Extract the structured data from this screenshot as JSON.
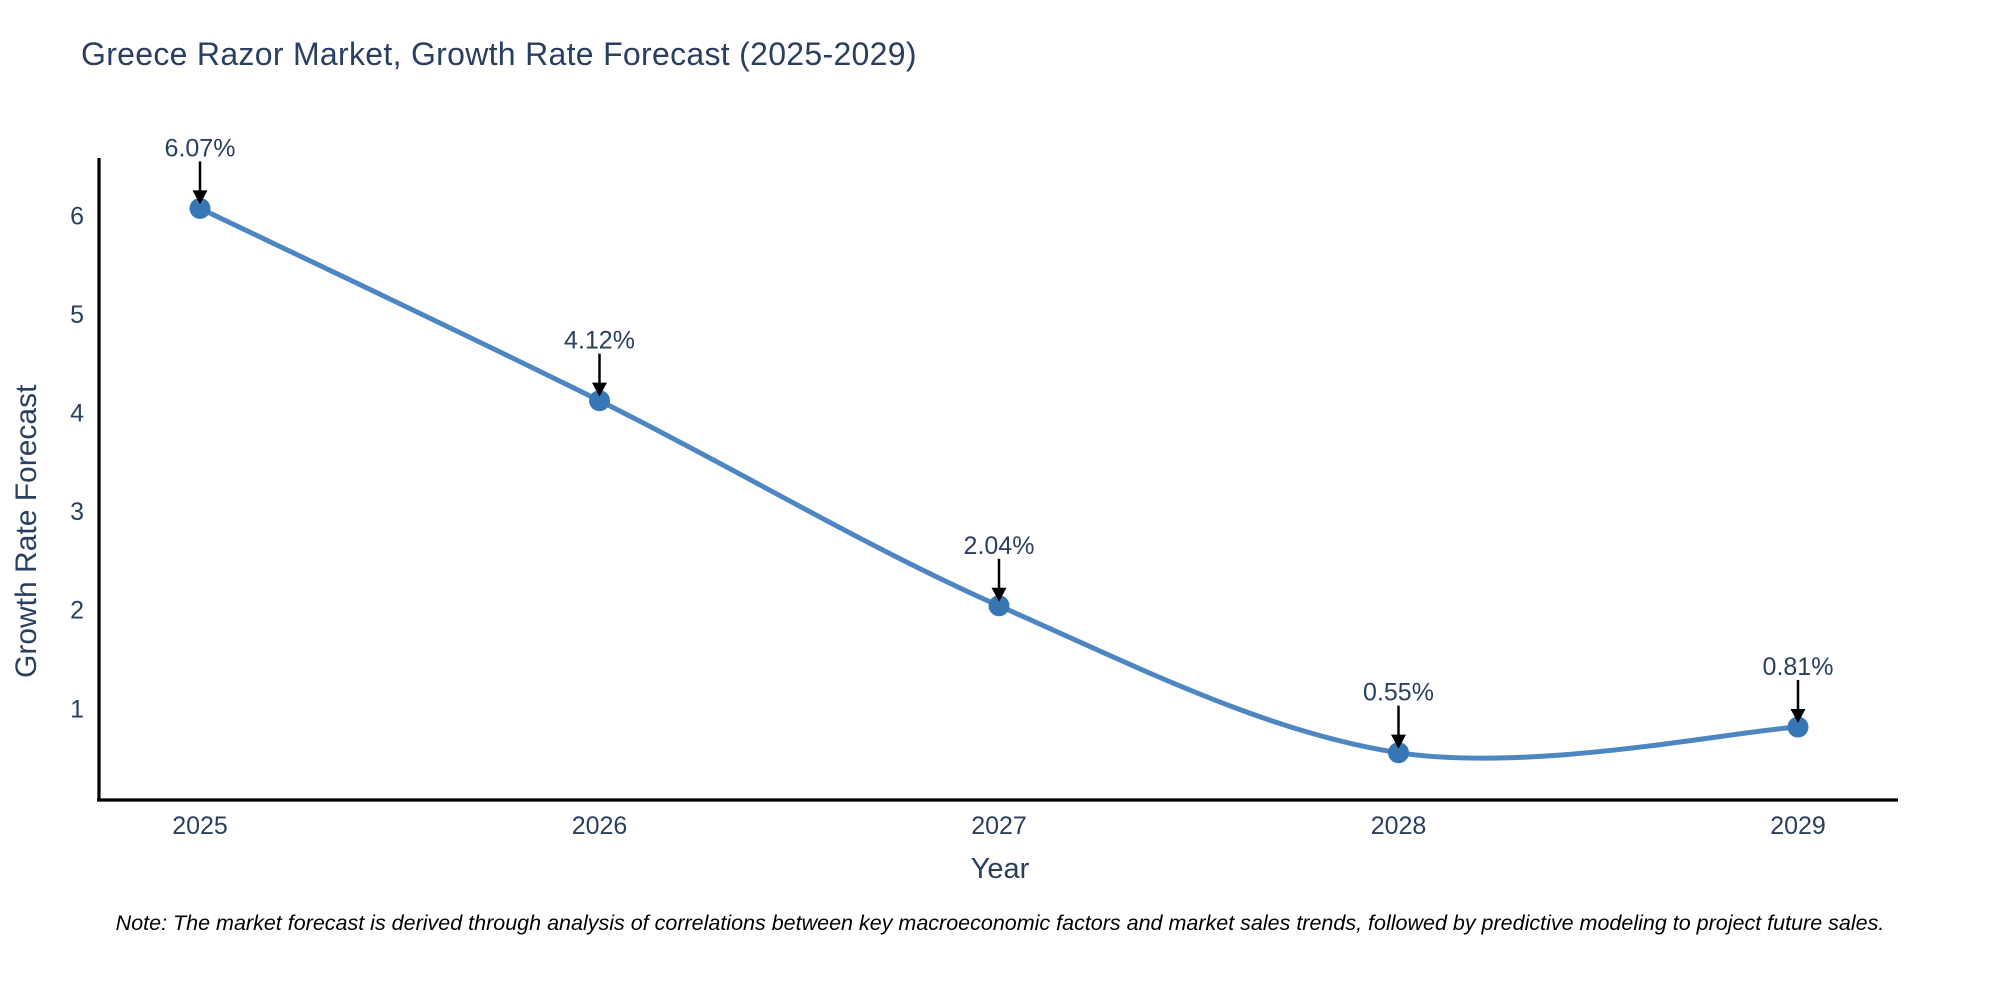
{
  "figure": {
    "note": "Note: The market forecast is derived through analysis of correlations between key macroeconomic factors and market sales trends, followed by predictive modeling to project future sales."
  },
  "chart_data": {
    "type": "line",
    "title": "Greece Razor Market, Growth Rate Forecast (2025-2029)",
    "xlabel": "Year",
    "ylabel": "Growth Rate Forecast",
    "x": [
      2025,
      2026,
      2027,
      2028,
      2029
    ],
    "series": [
      {
        "name": "Growth Rate Forecast",
        "values": [
          6.07,
          4.12,
          2.04,
          0.55,
          0.81
        ]
      }
    ],
    "point_labels": [
      "6.07%",
      "4.12%",
      "2.04%",
      "0.55%",
      "0.81%"
    ],
    "yticks": [
      1,
      2,
      3,
      4,
      5,
      6
    ],
    "ylim": [
      0.07,
      6.57
    ],
    "grid": false,
    "legend": "none",
    "colors": {
      "line": "#4e86c2",
      "marker": "#3776b5",
      "arrow": "#000000",
      "axis": "#000000",
      "tick_text": "#2a3f5f",
      "annotation_text": "#2a3f5f",
      "title_text": "#2a3f5f",
      "background": "#ffffff"
    }
  }
}
